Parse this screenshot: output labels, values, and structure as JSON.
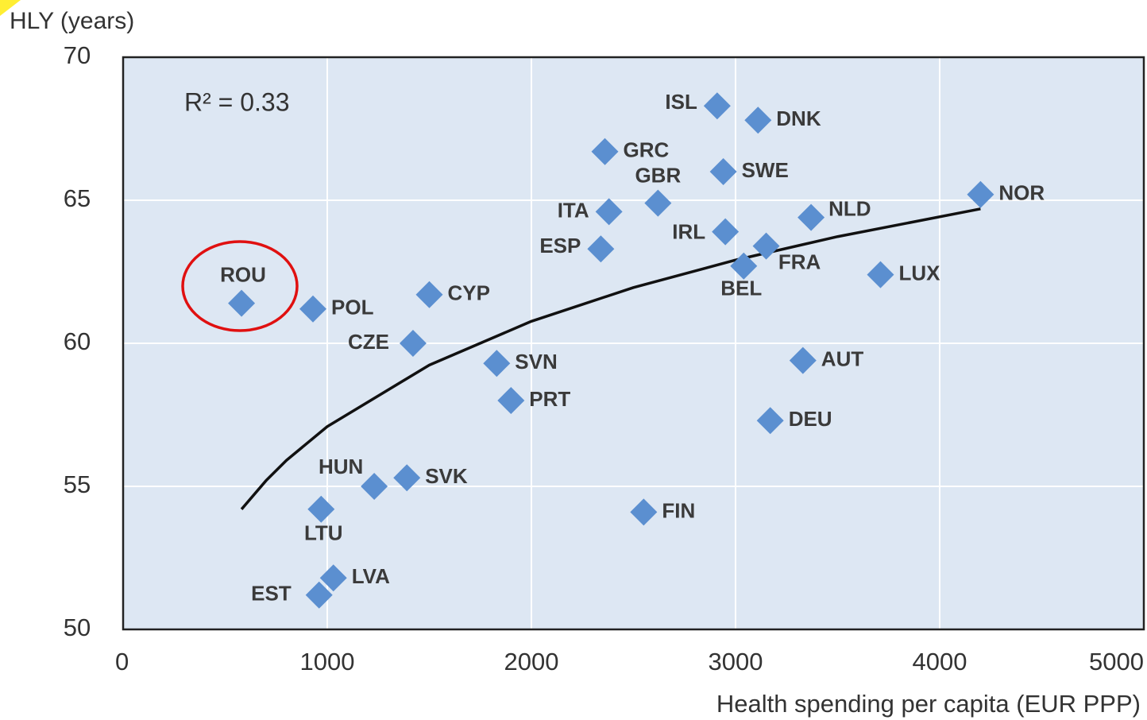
{
  "chart_data": {
    "type": "scatter",
    "ylabel": "HLY (years)",
    "xlabel": "Health spending per capita (EUR PPP)",
    "annotation": "R² = 0.33",
    "color": "#5b8fd0",
    "trend_color": "#111111",
    "grid": true,
    "xlim": [
      0,
      5000
    ],
    "ylim": [
      50,
      70
    ],
    "xticks": [
      0,
      1000,
      2000,
      3000,
      4000,
      5000
    ],
    "yticks": [
      50,
      55,
      60,
      65,
      70
    ],
    "point_labels": [
      "ROU",
      "POL",
      "CYP",
      "CZE",
      "SVN",
      "PRT",
      "HUN",
      "SVK",
      "LTU",
      "LVA",
      "EST",
      "FIN",
      "ISL",
      "DNK",
      "GRC",
      "SWE",
      "GBR",
      "ITA",
      "ESP",
      "IRL",
      "FRA",
      "BEL",
      "NLD",
      "NOR",
      "LUX",
      "AUT",
      "DEU"
    ],
    "x": [
      580,
      930,
      1500,
      1420,
      1830,
      1900,
      1230,
      1390,
      970,
      1030,
      960,
      2550,
      2910,
      3110,
      2360,
      2940,
      2620,
      2380,
      2340,
      2950,
      3150,
      3040,
      3370,
      4200,
      3710,
      3330,
      3170
    ],
    "y": [
      61.4,
      61.2,
      61.7,
      60.0,
      59.3,
      58.0,
      55.0,
      55.3,
      54.2,
      51.8,
      51.2,
      54.1,
      68.3,
      67.8,
      66.7,
      66.0,
      64.9,
      64.6,
      63.3,
      63.9,
      63.4,
      62.7,
      64.4,
      65.2,
      62.4,
      59.4,
      57.3
    ],
    "trendline": {
      "x": [
        580,
        700,
        800,
        1000,
        1500,
        2000,
        2500,
        3000,
        3500,
        4200
      ],
      "y": [
        54.2,
        55.2,
        55.91,
        57.09,
        59.24,
        60.77,
        61.95,
        62.91,
        63.73,
        64.7
      ]
    }
  }
}
